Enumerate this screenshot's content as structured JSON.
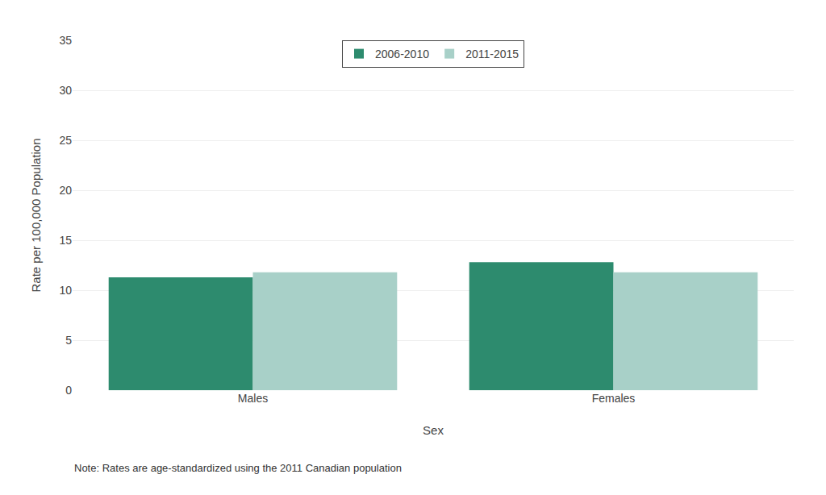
{
  "chart_data": {
    "type": "bar",
    "categories": [
      "Males",
      "Females"
    ],
    "series": [
      {
        "name": "2006-2010",
        "values": [
          11.3,
          12.8
        ],
        "color": "#2d8b6e"
      },
      {
        "name": "2011-2015",
        "values": [
          11.8,
          11.8
        ],
        "color": "#a8d0c8"
      }
    ],
    "xlabel": "Sex",
    "ylabel": "Rate per 100,000 Population",
    "ylim": [
      0,
      35
    ],
    "yticks": [
      0,
      5,
      10,
      15,
      20,
      25,
      30,
      35
    ],
    "grid": true,
    "legend": "upper center",
    "annotations": [
      "Note: Rates are age-standardized using the 2011 Canadian population"
    ]
  }
}
